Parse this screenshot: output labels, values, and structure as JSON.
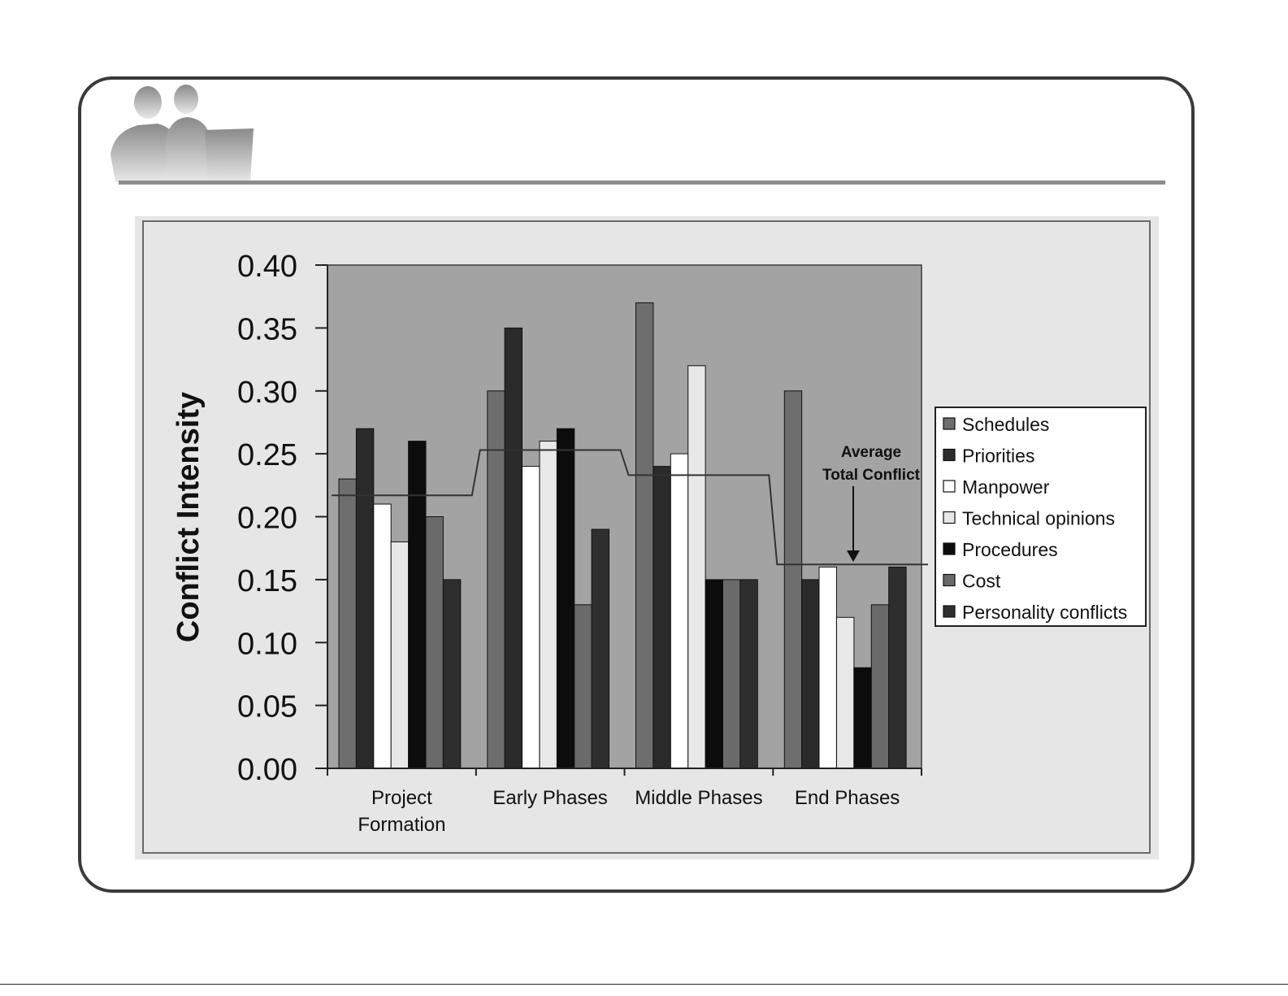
{
  "chart_data": {
    "type": "bar",
    "title": "",
    "xlabel": "",
    "ylabel": "Conflict Intensity",
    "ylim": [
      0,
      0.4
    ],
    "yticks": [
      "0.00",
      "0.05",
      "0.10",
      "0.15",
      "0.20",
      "0.25",
      "0.30",
      "0.35",
      "0.40"
    ],
    "categories": [
      [
        "Project",
        "Formation"
      ],
      [
        "Early Phases"
      ],
      [
        "Middle Phases"
      ],
      [
        "End Phases"
      ]
    ],
    "series": [
      {
        "name": "Schedules",
        "color": "#6e6e6e",
        "values": [
          0.23,
          0.3,
          0.37,
          0.3
        ]
      },
      {
        "name": "Priorities",
        "color": "#2a2a2a",
        "values": [
          0.27,
          0.35,
          0.24,
          0.15
        ]
      },
      {
        "name": "Manpower",
        "color": "#ffffff",
        "values": [
          0.21,
          0.24,
          0.25,
          0.16
        ]
      },
      {
        "name": "Technical opinions",
        "color": "#e8e8e8",
        "values": [
          0.18,
          0.26,
          0.32,
          0.12
        ]
      },
      {
        "name": "Procedures",
        "color": "#0c0c0c",
        "values": [
          0.26,
          0.27,
          0.15,
          0.08
        ]
      },
      {
        "name": "Cost",
        "color": "#6a6a6a",
        "values": [
          0.2,
          0.13,
          0.15,
          0.13
        ]
      },
      {
        "name": "Personality conflicts",
        "color": "#2e2e2e",
        "values": [
          0.15,
          0.19,
          0.15,
          0.16
        ]
      }
    ],
    "average_total_conflict": {
      "label": [
        "Average",
        "Total Conflict"
      ],
      "values": [
        0.217,
        0.253,
        0.233,
        0.162
      ]
    },
    "plot_background": "#a3a3a3",
    "legend_position": "right",
    "grid": false
  }
}
